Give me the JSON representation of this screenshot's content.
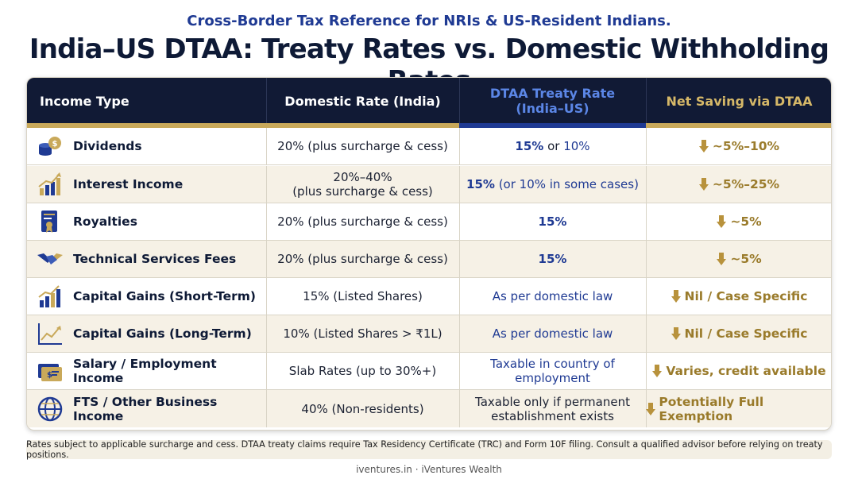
{
  "header": {
    "subtitle": "Cross-Border Tax Reference for NRIs & US-Resident Indians.",
    "title": "India–US DTAA: Treaty Rates vs. Domestic Withholding Rates"
  },
  "table": {
    "columns": {
      "income_type": "Income Type",
      "domestic": "Domestic Rate (India)",
      "treaty_line1": "DTAA Treaty Rate",
      "treaty_line2": "(India–US)",
      "saving": "Net Saving via DTAA"
    },
    "rows": [
      {
        "icon": "coins-icon",
        "type": "Dividends",
        "domestic": "20% (plus surcharge & cess)",
        "treaty_a": "15%",
        "treaty_mid": " or ",
        "treaty_b": "10%",
        "saving": "~5%–10%"
      },
      {
        "icon": "rising-chart-icon",
        "type": "Interest Income",
        "domestic_l1": "20%–40%",
        "domestic_l2": "(plus surcharge & cess)",
        "treaty_a": "15%",
        "treaty_mid": " (or 10% in some cases)",
        "saving": "~5%–25%"
      },
      {
        "icon": "certificate-icon",
        "type": "Royalties",
        "domestic": "20% (plus surcharge & cess)",
        "treaty_a": "15%",
        "saving": "~5%"
      },
      {
        "icon": "handshake-icon",
        "type": "Technical Services Fees",
        "domestic": "20% (plus surcharge & cess)",
        "treaty_a": "15%",
        "saving": "~5%"
      },
      {
        "icon": "bar-growth-icon",
        "type": "Capital Gains (Short-Term)",
        "domestic": "15% (Listed Shares)",
        "treaty": "As per domestic law",
        "saving": "Nil / Case Specific"
      },
      {
        "icon": "line-growth-icon",
        "type": "Capital Gains (Long-Term)",
        "domestic": "10% (Listed Shares > ₹1L)",
        "treaty": "As per domestic law",
        "saving": "Nil / Case Specific"
      },
      {
        "icon": "salary-card-icon",
        "type": "Salary / Employment Income",
        "domestic": "Slab Rates (up to 30%+)",
        "treaty_l1": "Taxable in country of",
        "treaty_l2": "employment",
        "saving": "Varies, credit available"
      },
      {
        "icon": "globe-icon",
        "type": "FTS / Other Business Income",
        "domestic": "40% (Non-residents)",
        "treaty_l1": "Taxable only if permanent",
        "treaty_l2": "establishment exists",
        "saving": "Potentially Full Exemption"
      }
    ]
  },
  "footnote": "Rates subject to applicable surcharge and cess. DTAA treaty claims require Tax Residency Certificate (TRC) and Form 10F filing. Consult a qualified advisor before relying on treaty positions.",
  "footer": "iventures.in · iVentures Wealth",
  "colors": {
    "navy": "#111a35",
    "gold": "#c9a95a",
    "blue": "#1f3a93",
    "cream": "#f6f1e6"
  }
}
